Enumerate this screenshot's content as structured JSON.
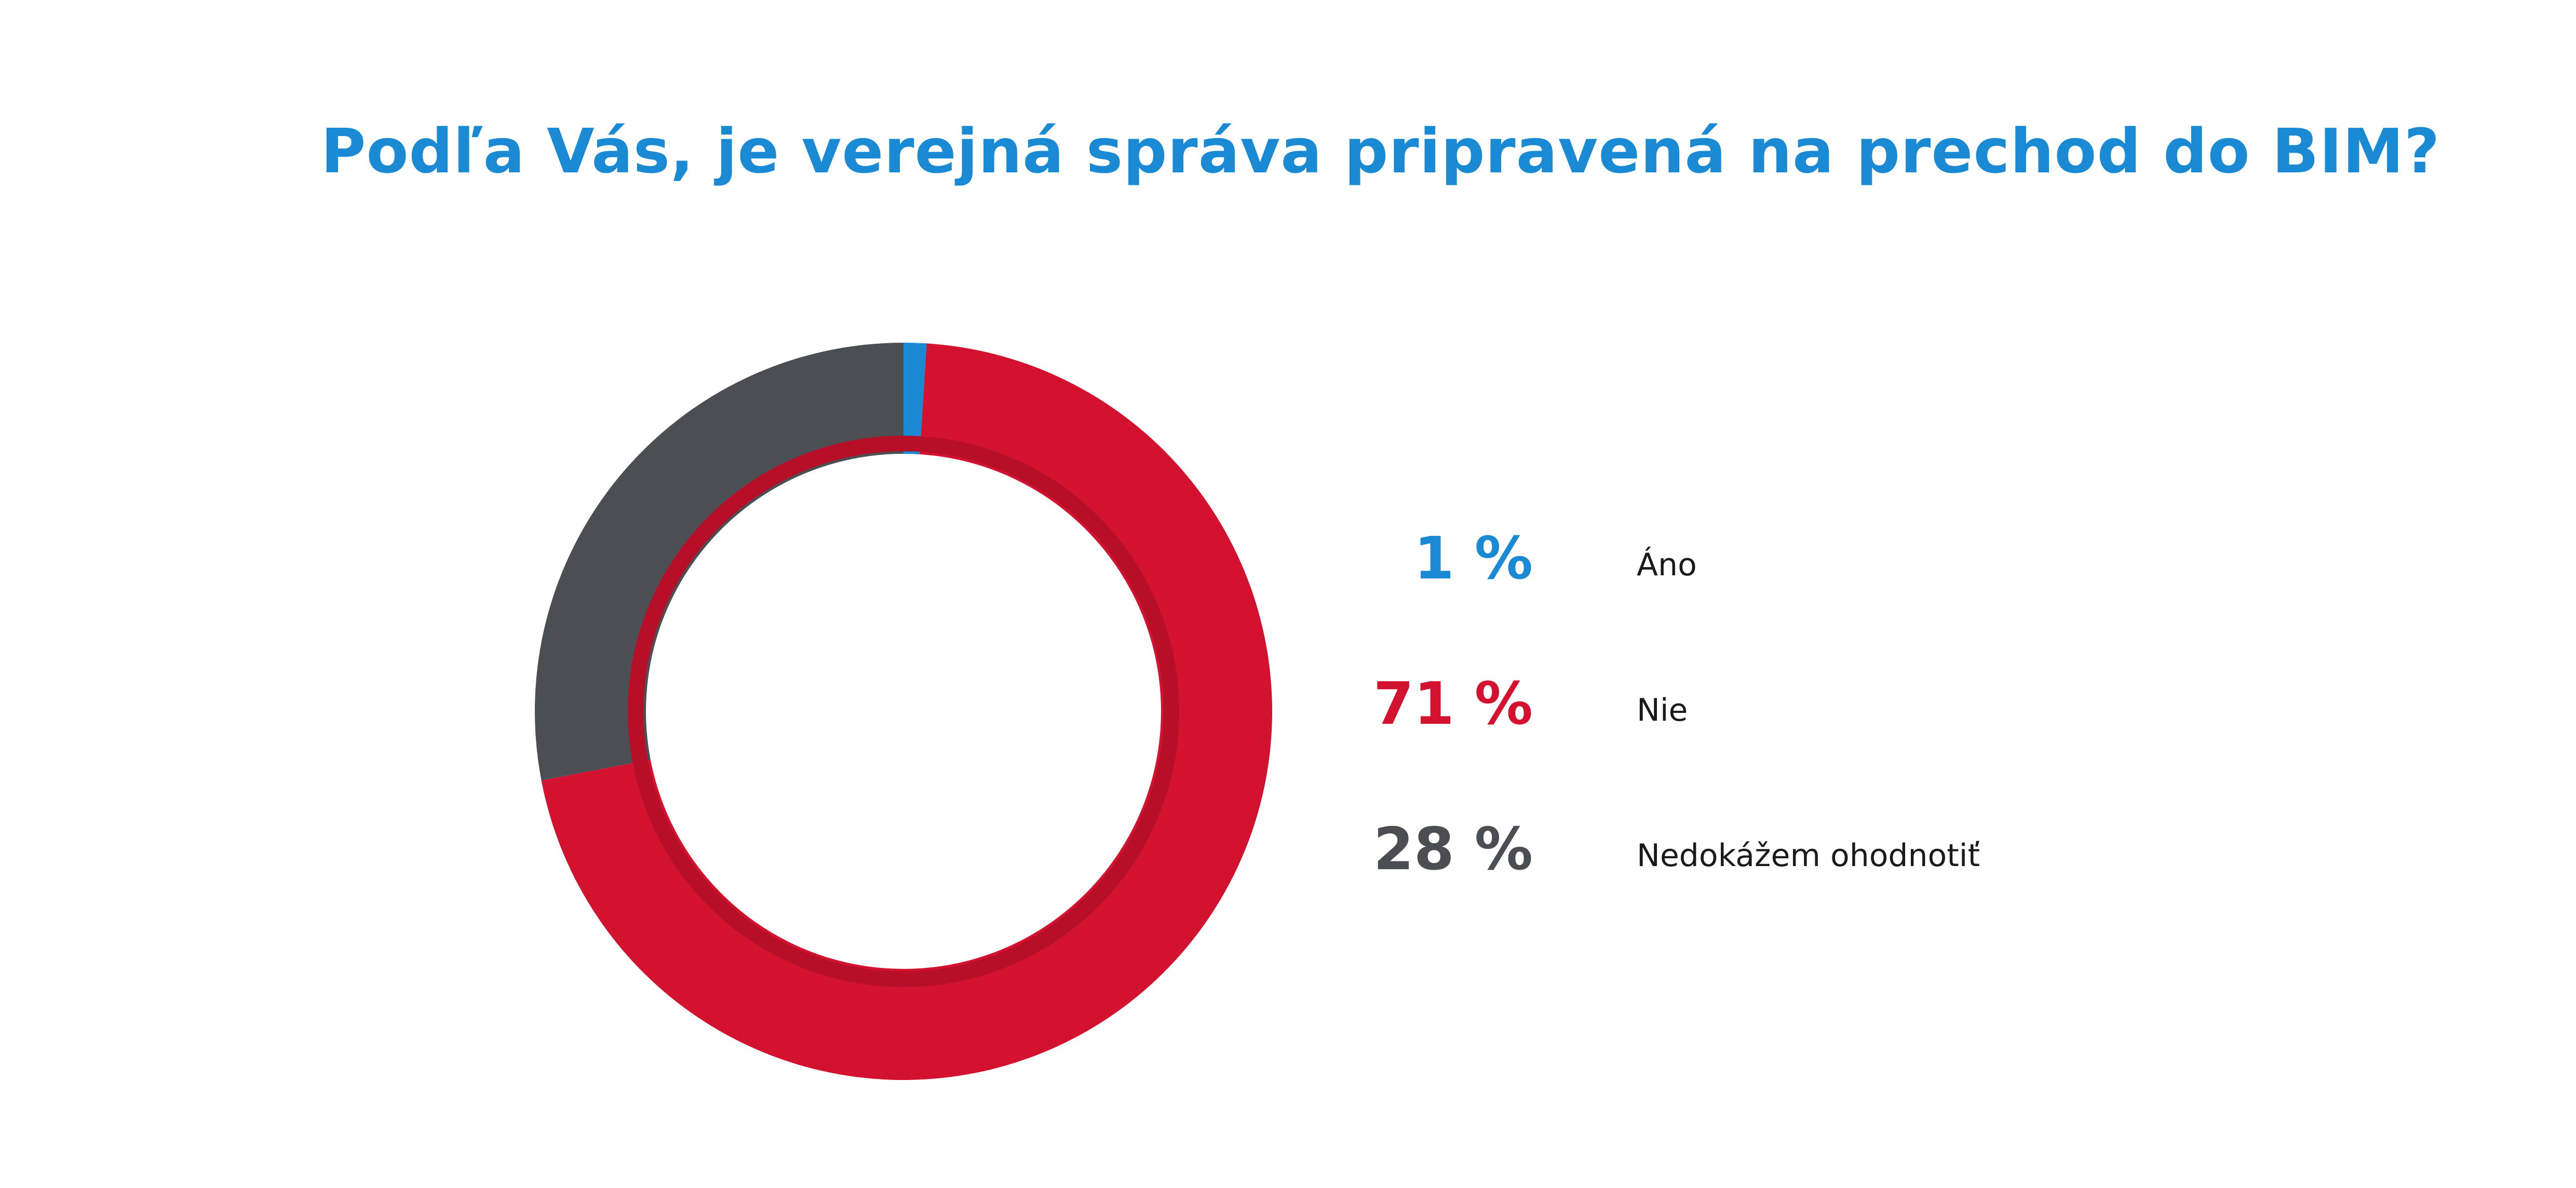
{
  "chart_data": {
    "type": "pie",
    "variant": "donut",
    "title": "Podľa Vás, je verejná správa pripravená na prechod do BIM?",
    "categories": [
      "Áno",
      "Nie",
      "Nedokážem ohodnotiť"
    ],
    "values": [
      1,
      71,
      28
    ],
    "value_labels": [
      "1 %",
      "71 %",
      "28 %"
    ],
    "colors": [
      "#1a8ad4",
      "#d3122f",
      "#4b4f53"
    ],
    "legend_position": "right"
  },
  "colors": {
    "title": "#1a8ad4",
    "inner_shadow": "#b80f29"
  }
}
